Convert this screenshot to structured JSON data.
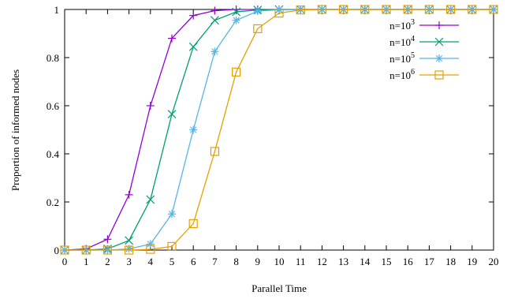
{
  "chart_data": {
    "type": "line",
    "xlabel": "Parallel Time",
    "ylabel": "Proportion of informed nodes",
    "xlim": [
      0,
      20
    ],
    "ylim": [
      0,
      1
    ],
    "xticks": [
      0,
      1,
      2,
      3,
      4,
      5,
      6,
      7,
      8,
      9,
      10,
      11,
      12,
      13,
      14,
      15,
      16,
      17,
      18,
      19,
      20
    ],
    "yticks": [
      0,
      0.2,
      0.4,
      0.6,
      0.8,
      1
    ],
    "ytick_labels": [
      "0",
      "0.2",
      "0.4",
      "0.6",
      "0.8",
      "1"
    ],
    "grid": false,
    "legend_position": "top-right",
    "x": [
      0,
      1,
      2,
      3,
      4,
      5,
      6,
      7,
      8,
      9,
      10,
      11,
      12,
      13,
      14,
      15,
      16,
      17,
      18,
      19,
      20
    ],
    "series": [
      {
        "name_base": "n=10",
        "name_exp": "3",
        "color": "#9400d3",
        "marker": "plus",
        "values": [
          0,
          0.005,
          0.045,
          0.23,
          0.6,
          0.88,
          0.975,
          0.995,
          1,
          1,
          1,
          1,
          1,
          1,
          1,
          1,
          1,
          1,
          1,
          1,
          1
        ]
      },
      {
        "name_base": "n=10",
        "name_exp": "4",
        "color": "#009e73",
        "marker": "cross",
        "values": [
          0,
          0,
          0.005,
          0.04,
          0.21,
          0.565,
          0.845,
          0.955,
          0.99,
          0.998,
          1,
          1,
          1,
          1,
          1,
          1,
          1,
          1,
          1,
          1,
          1
        ]
      },
      {
        "name_base": "n=10",
        "name_exp": "5",
        "color": "#56b4e9",
        "marker": "star",
        "values": [
          0,
          0,
          0,
          0.005,
          0.025,
          0.15,
          0.5,
          0.825,
          0.955,
          0.993,
          0.999,
          1,
          1,
          1,
          1,
          1,
          1,
          1,
          1,
          1,
          1
        ]
      },
      {
        "name_base": "n=10",
        "name_exp": "6",
        "color": "#e69f00",
        "marker": "square",
        "values": [
          0,
          0,
          0,
          0,
          0.003,
          0.015,
          0.11,
          0.41,
          0.74,
          0.92,
          0.985,
          0.998,
          1,
          1,
          1,
          1,
          1,
          1,
          1,
          1,
          1
        ]
      }
    ]
  }
}
